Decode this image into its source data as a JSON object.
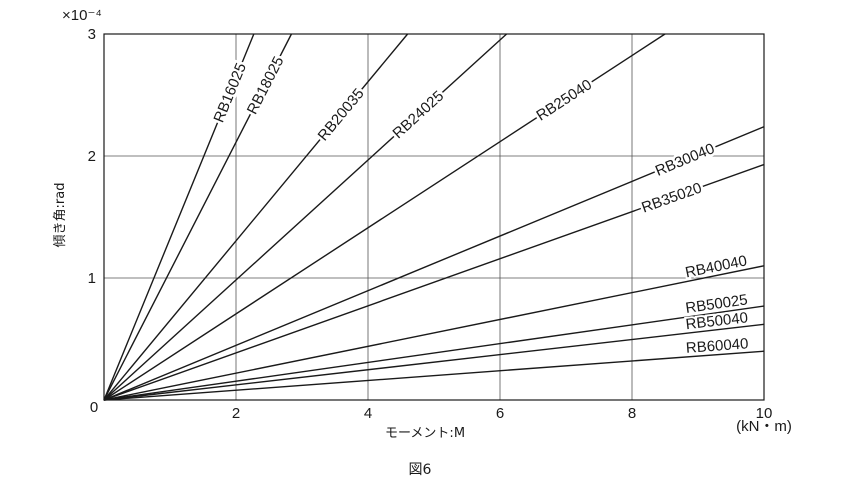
{
  "chart_data": {
    "type": "line",
    "xlabel": "モーメント:M",
    "xunit": "(kN・m)",
    "ylabel": "傾き角:rad",
    "yexponent": "×10⁻⁴",
    "caption": "図6",
    "xlim": [
      0,
      10
    ],
    "ylim": [
      0,
      3
    ],
    "xticks": [
      "0",
      "2",
      "4",
      "6",
      "8",
      "10"
    ],
    "yticks": [
      "1",
      "2",
      "3"
    ],
    "grid": true,
    "line_color": "#1a1a1a",
    "series": [
      {
        "name": "RB16025",
        "x": [
          0,
          2.27
        ],
        "y": [
          0,
          3.0
        ]
      },
      {
        "name": "RB18025",
        "x": [
          0,
          2.84
        ],
        "y": [
          0,
          3.0
        ]
      },
      {
        "name": "RB20035",
        "x": [
          0,
          4.6
        ],
        "y": [
          0,
          3.0
        ]
      },
      {
        "name": "RB24025",
        "x": [
          0,
          6.1
        ],
        "y": [
          0,
          3.0
        ]
      },
      {
        "name": "RB25040",
        "x": [
          0,
          8.5
        ],
        "y": [
          0,
          3.0
        ]
      },
      {
        "name": "RB30040",
        "x": [
          0,
          10
        ],
        "y": [
          0,
          2.24
        ]
      },
      {
        "name": "RB35020",
        "x": [
          0,
          10
        ],
        "y": [
          0,
          1.93
        ]
      },
      {
        "name": "RB40040",
        "x": [
          0,
          10
        ],
        "y": [
          0,
          1.1
        ]
      },
      {
        "name": "RB50025",
        "x": [
          0,
          10
        ],
        "y": [
          0,
          0.77
        ]
      },
      {
        "name": "RB50040",
        "x": [
          0,
          10
        ],
        "y": [
          0,
          0.62
        ]
      },
      {
        "name": "RB60040",
        "x": [
          0,
          10
        ],
        "y": [
          0,
          0.4
        ]
      }
    ]
  }
}
